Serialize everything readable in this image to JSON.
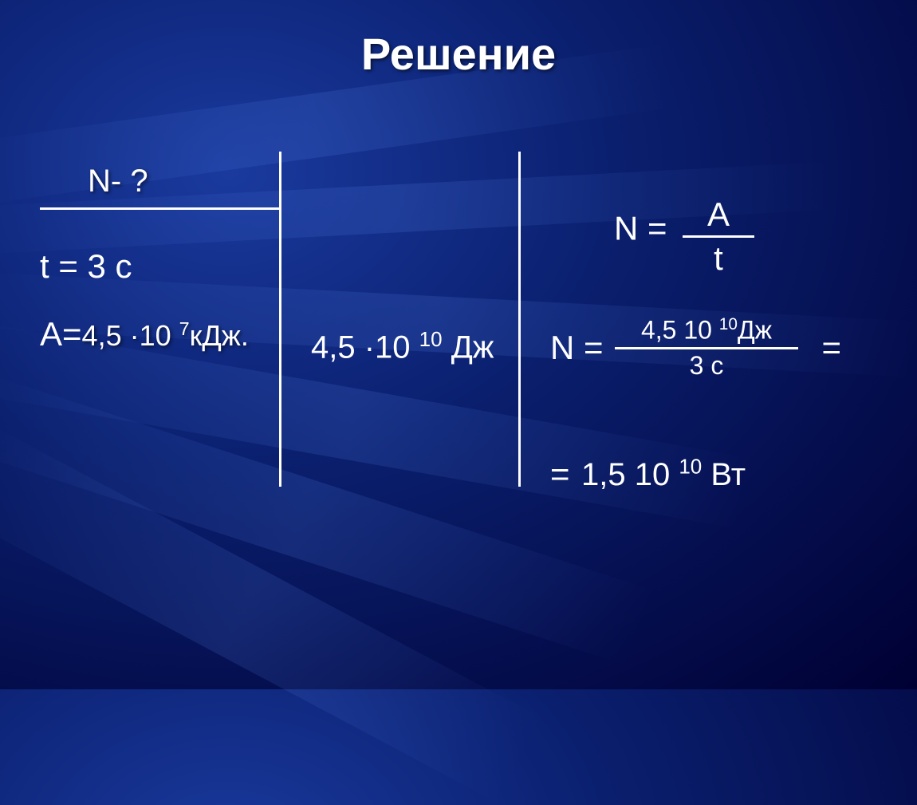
{
  "title": "Решение",
  "given": {
    "unknown": "N- ?",
    "time": "t = 3 c",
    "work_label": "A=",
    "work_value_html": "4,5 ·10 <sup>7</sup>кДж."
  },
  "si": {
    "work_html": "4,5 ·10 <sup>10</sup> Дж"
  },
  "formula": {
    "lhs": "N =",
    "numerator": "A",
    "denominator": "t"
  },
  "calc": {
    "lhs": "N =",
    "numerator_html": "4,5 10 <sup>10</sup>Дж",
    "denominator": "3 с",
    "equals": "="
  },
  "result": {
    "equals": "=",
    "value_html": "1,5 10 <sup>10</sup> Вт"
  },
  "style": {
    "title_color": "#ffffff",
    "text_color": "#ffffff"
  }
}
